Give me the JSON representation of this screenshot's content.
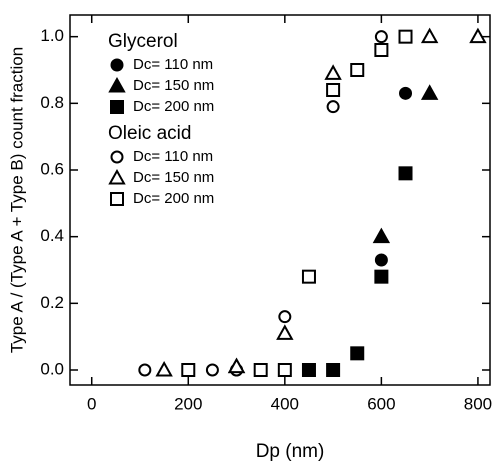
{
  "chart_data": {
    "type": "scatter",
    "xlabel": "Dp (nm)",
    "ylabel": "Type A / (Type A + Type B) count fraction",
    "legend_titles": [
      "Glycerol",
      "Oleic acid"
    ],
    "xlim": [
      -45,
      825
    ],
    "xticks": [
      0,
      200,
      400,
      600,
      800
    ],
    "ylim": [
      -0.045,
      1.065
    ],
    "yticks": [
      {
        "value": 0,
        "label": "0.0"
      },
      {
        "value": 0.2,
        "label": "0.2"
      },
      {
        "value": 0.4,
        "label": "0.4"
      },
      {
        "value": 0.6,
        "label": "0.6"
      },
      {
        "value": 0.8,
        "label": "0.8"
      },
      {
        "value": 1,
        "label": "1.0"
      }
    ],
    "series": [
      {
        "name": "Dc= 110 nm",
        "color": "#000000",
        "marker": "circle",
        "filled": true,
        "x": [
          300,
          600,
          650
        ],
        "values": [
          0,
          0.33,
          0.83
        ]
      },
      {
        "name": "Dc= 150 nm",
        "color": "#000000",
        "marker": "triangle",
        "filled": true,
        "x": [
          300,
          600,
          700
        ],
        "values": [
          0.01,
          0.4,
          0.83
        ]
      },
      {
        "name": "Dc= 200 nm",
        "color": "#000000",
        "marker": "square",
        "filled": true,
        "x": [
          450,
          500,
          550,
          600,
          650
        ],
        "values": [
          0,
          0,
          0.05,
          0.28,
          0.59
        ]
      },
      {
        "name": "Dc= 110 nm",
        "color": "#000000",
        "marker": "circle",
        "filled": false,
        "x": [
          110,
          250,
          300,
          400,
          500,
          600
        ],
        "values": [
          0,
          0,
          0,
          0.16,
          0.79,
          1.0
        ]
      },
      {
        "name": "Dc= 150 nm",
        "color": "#000000",
        "marker": "triangle",
        "filled": false,
        "x": [
          150,
          300,
          400,
          500,
          700,
          800
        ],
        "values": [
          0,
          0.01,
          0.11,
          0.89,
          1.0,
          1.0
        ]
      },
      {
        "name": "Dc= 200 nm",
        "color": "#000000",
        "marker": "square",
        "filled": false,
        "x": [
          200,
          350,
          400,
          450,
          500,
          550,
          600,
          650
        ],
        "values": [
          0,
          0,
          0,
          0.28,
          0.84,
          0.9,
          0.96,
          1.0
        ]
      }
    ]
  }
}
